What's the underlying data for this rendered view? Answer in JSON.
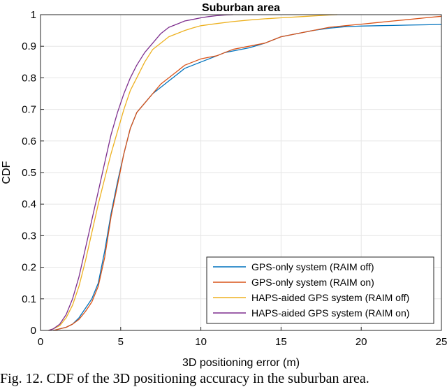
{
  "caption": "Fig. 12. CDF of the 3D positioning accuracy in the suburban area.",
  "colors": {
    "gps_raim_off": "#0072BD",
    "gps_raim_on": "#D95319",
    "haps_raim_off": "#EDB120",
    "haps_raim_on": "#7E2F8E",
    "grid": "#e6e6e6",
    "axis": "#262626"
  },
  "chart_data": {
    "type": "line",
    "title": "Suburban area",
    "xlabel": "3D positioning error (m)",
    "ylabel": "CDF",
    "xlim": [
      0,
      25
    ],
    "ylim": [
      0,
      1
    ],
    "xticks": [
      0,
      5,
      10,
      15,
      20,
      25
    ],
    "yticks": [
      0,
      0.1,
      0.2,
      0.3,
      0.4,
      0.5,
      0.6,
      0.7,
      0.8,
      0.9,
      1
    ],
    "xtick_labels": [
      "0",
      "5",
      "10",
      "15",
      "20",
      "25"
    ],
    "ytick_labels": [
      "0",
      "0.1",
      "0.2",
      "0.3",
      "0.4",
      "0.5",
      "0.6",
      "0.7",
      "0.8",
      "0.9",
      "1"
    ],
    "grid": true,
    "legend_position": "bottom-right",
    "series": [
      {
        "name": "GPS-only system (RAIM off)",
        "color_key": "gps_raim_off",
        "x": [
          0.8,
          1.2,
          1.6,
          2.0,
          2.4,
          2.8,
          3.2,
          3.6,
          4.0,
          4.4,
          4.8,
          5.2,
          5.6,
          6.0,
          6.5,
          7.0,
          7.5,
          8.0,
          8.5,
          9.0,
          9.5,
          10.0,
          10.5,
          11.0,
          11.5,
          12.0,
          13.0,
          14.0,
          15.0,
          16.0,
          17.0,
          18.0,
          19.0,
          20.0,
          21.0,
          22.0,
          23.0,
          24.0,
          25.0
        ],
        "y": [
          0.0,
          0.005,
          0.01,
          0.02,
          0.04,
          0.07,
          0.1,
          0.15,
          0.25,
          0.37,
          0.47,
          0.56,
          0.64,
          0.69,
          0.72,
          0.75,
          0.77,
          0.79,
          0.81,
          0.83,
          0.84,
          0.85,
          0.86,
          0.87,
          0.88,
          0.885,
          0.895,
          0.91,
          0.93,
          0.94,
          0.95,
          0.957,
          0.962,
          0.964,
          0.965,
          0.966,
          0.967,
          0.968,
          0.969
        ]
      },
      {
        "name": "GPS-only system (RAIM on)",
        "color_key": "gps_raim_on",
        "x": [
          0.8,
          1.2,
          1.6,
          2.0,
          2.4,
          2.8,
          3.2,
          3.6,
          4.0,
          4.4,
          4.8,
          5.2,
          5.6,
          6.0,
          6.5,
          7.0,
          7.5,
          8.0,
          8.5,
          9.0,
          9.5,
          10.0,
          10.5,
          11.0,
          11.5,
          12.0,
          13.0,
          14.0,
          15.0,
          16.0,
          17.0,
          18.0,
          19.0,
          20.0,
          21.0,
          22.0,
          23.0,
          24.0,
          25.0
        ],
        "y": [
          0.0,
          0.005,
          0.01,
          0.02,
          0.035,
          0.06,
          0.09,
          0.14,
          0.23,
          0.36,
          0.46,
          0.56,
          0.64,
          0.69,
          0.72,
          0.75,
          0.78,
          0.8,
          0.82,
          0.84,
          0.85,
          0.86,
          0.865,
          0.87,
          0.88,
          0.89,
          0.9,
          0.91,
          0.93,
          0.94,
          0.95,
          0.96,
          0.965,
          0.97,
          0.975,
          0.98,
          0.985,
          0.99,
          0.995
        ]
      },
      {
        "name": "HAPS-aided GPS system (RAIM off)",
        "color_key": "haps_raim_off",
        "x": [
          0.5,
          0.8,
          1.2,
          1.6,
          2.0,
          2.4,
          2.8,
          3.2,
          3.6,
          4.0,
          4.4,
          4.8,
          5.2,
          5.6,
          6.0,
          6.5,
          7.0,
          7.5,
          8.0,
          8.5,
          9.0,
          9.5,
          10.0,
          11.0,
          12.0,
          13.0,
          14.0,
          15.0,
          16.0,
          17.0,
          18.0,
          18.5
        ],
        "y": [
          0.0,
          0.005,
          0.015,
          0.04,
          0.08,
          0.14,
          0.22,
          0.31,
          0.4,
          0.48,
          0.56,
          0.63,
          0.7,
          0.76,
          0.8,
          0.85,
          0.89,
          0.91,
          0.93,
          0.94,
          0.95,
          0.958,
          0.965,
          0.972,
          0.978,
          0.983,
          0.987,
          0.99,
          0.993,
          0.996,
          0.999,
          1.0
        ]
      },
      {
        "name": "HAPS-aided GPS system (RAIM on)",
        "color_key": "haps_raim_on",
        "x": [
          0.5,
          0.8,
          1.2,
          1.6,
          2.0,
          2.4,
          2.8,
          3.2,
          3.6,
          4.0,
          4.4,
          4.8,
          5.2,
          5.6,
          6.0,
          6.5,
          7.0,
          7.5,
          8.0,
          8.5,
          9.0,
          9.5,
          10.0,
          10.5,
          11.0,
          11.5,
          12.0
        ],
        "y": [
          0.0,
          0.005,
          0.02,
          0.05,
          0.1,
          0.17,
          0.26,
          0.35,
          0.44,
          0.53,
          0.62,
          0.69,
          0.75,
          0.8,
          0.84,
          0.88,
          0.91,
          0.94,
          0.96,
          0.97,
          0.98,
          0.985,
          0.99,
          0.994,
          0.997,
          0.999,
          1.0
        ]
      }
    ]
  }
}
